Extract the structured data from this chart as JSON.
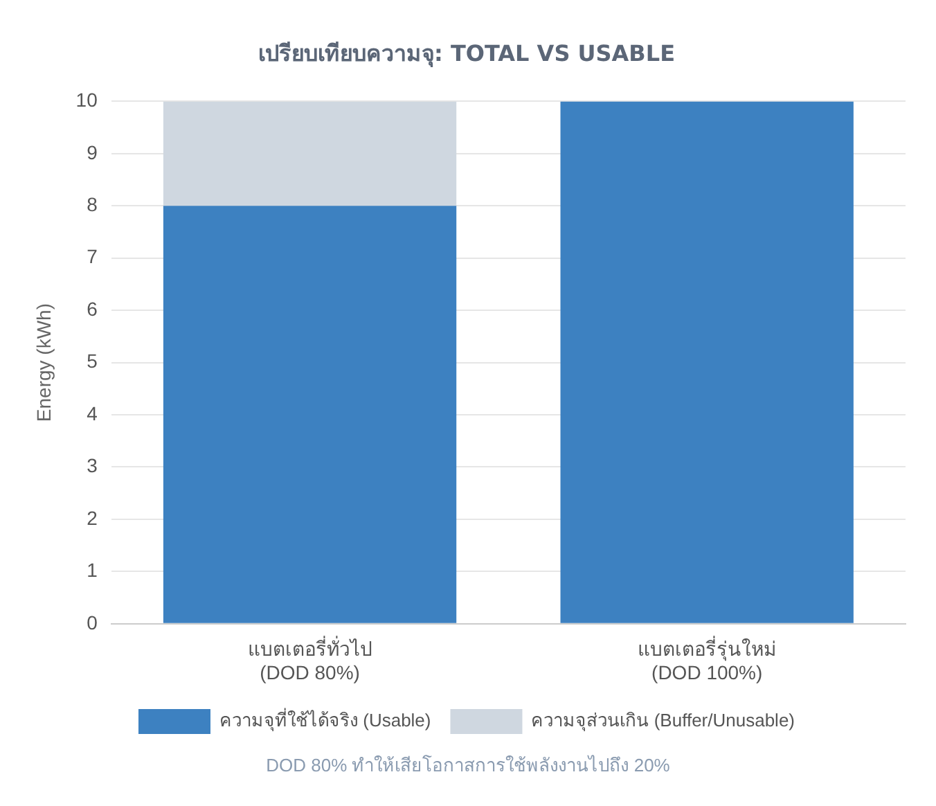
{
  "chart_data": {
    "type": "bar",
    "title": "เปรียบเทียบความจุ: TOTAL VS USABLE",
    "ylabel": "Energy (kWh)",
    "categories": [
      "แบตเตอรี่ทั่วไป\n(DOD 80%)",
      "แบตเตอรี่รุ่นใหม่\n(DOD 100%)"
    ],
    "series": [
      {
        "name": "ความจุที่ใช้ได้จริง (Usable)",
        "color": "#3d81c1",
        "values": [
          8,
          10
        ]
      },
      {
        "name": "ความจุส่วนเกิน (Buffer/Unusable)",
        "color": "#cfd7e0",
        "values": [
          2,
          0
        ]
      }
    ],
    "stacked": true,
    "ylim": [
      0,
      10
    ],
    "yticks": [
      0,
      1,
      2,
      3,
      4,
      5,
      6,
      7,
      8,
      9,
      10
    ],
    "grid": "y",
    "legend": "bottom",
    "annotations": [
      "DOD 80% ทำให้เสียโอกาสการใช้พลังงานไปถึง 20%"
    ]
  }
}
